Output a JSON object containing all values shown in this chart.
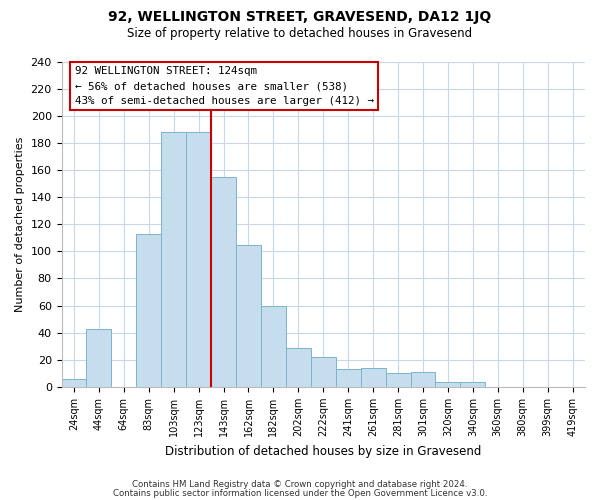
{
  "title": "92, WELLINGTON STREET, GRAVESEND, DA12 1JQ",
  "subtitle": "Size of property relative to detached houses in Gravesend",
  "xlabel": "Distribution of detached houses by size in Gravesend",
  "ylabel": "Number of detached properties",
  "bar_labels": [
    "24sqm",
    "44sqm",
    "64sqm",
    "83sqm",
    "103sqm",
    "123sqm",
    "143sqm",
    "162sqm",
    "182sqm",
    "202sqm",
    "222sqm",
    "241sqm",
    "261sqm",
    "281sqm",
    "301sqm",
    "320sqm",
    "340sqm",
    "360sqm",
    "380sqm",
    "399sqm",
    "419sqm"
  ],
  "bar_values": [
    6,
    43,
    0,
    113,
    188,
    188,
    155,
    105,
    60,
    29,
    22,
    13,
    14,
    10,
    11,
    4,
    4,
    0,
    0,
    0,
    0
  ],
  "bar_color": "#c5dded",
  "bar_edge_color": "#7ab4cc",
  "vline_color": "#cc0000",
  "annotation_title": "92 WELLINGTON STREET: 124sqm",
  "annotation_line1": "← 56% of detached houses are smaller (538)",
  "annotation_line2": "43% of semi-detached houses are larger (412) →",
  "annotation_box_edge": "#cc0000",
  "ylim": [
    0,
    240
  ],
  "yticks": [
    0,
    20,
    40,
    60,
    80,
    100,
    120,
    140,
    160,
    180,
    200,
    220,
    240
  ],
  "footer1": "Contains HM Land Registry data © Crown copyright and database right 2024.",
  "footer2": "Contains public sector information licensed under the Open Government Licence v3.0.",
  "bg_color": "#ffffff",
  "grid_color": "#c8d8e8"
}
